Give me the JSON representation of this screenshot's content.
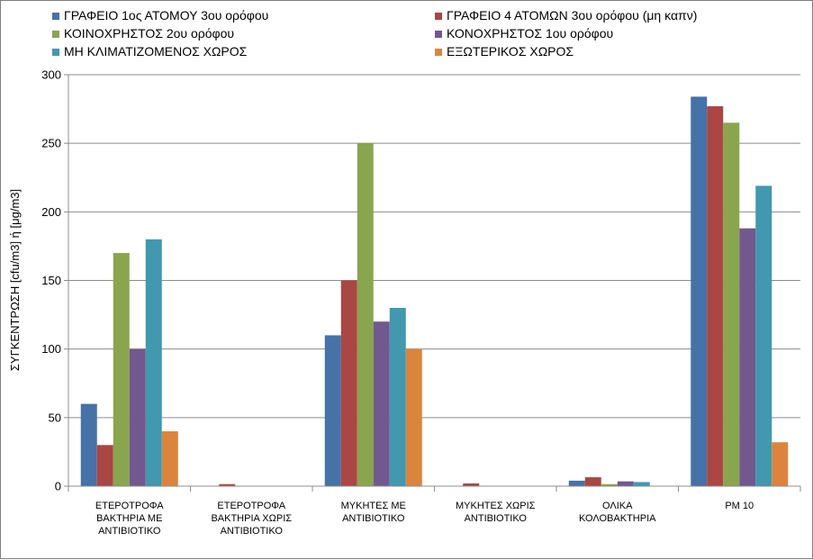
{
  "chart_data": {
    "type": "bar",
    "title": "",
    "xlabel": "",
    "ylabel": "ΣΥΓΚΕΝΤΡΩΣΗ [cfu/m3] ή [μg/m3]",
    "ylim": [
      0,
      300
    ],
    "yticks": [
      0,
      50,
      100,
      150,
      200,
      250,
      300
    ],
    "grid": true,
    "legend_position": "top",
    "categories": [
      [
        "ΕΤΕΡΟΤΡΟΦΑ",
        "ΒΑΚΤΗΡΙΑ ΜΕ",
        "ΑΝΤΙΒΙΟΤΙΚΟ"
      ],
      [
        "ΕΤΕΡΟΤΡΟΦΑ",
        "ΒΑΚΤΗΡΙΑ ΧΩΡΙΣ",
        "ΑΝΤΙΒΙΟΤΙΚΟ"
      ],
      [
        "ΜΥΚΗΤΕΣ ΜΕ",
        "ΑΝΤΙΒΙΟΤΙΚΟ"
      ],
      [
        "ΜΥΚΗΤΕΣ ΧΩΡΙΣ",
        "ΑΝΤΙΒΙΟΤΙΚΟ"
      ],
      [
        "ΟΛΙΚΑ",
        "ΚΟΛΟΒΑΚΤΗΡΙΑ"
      ],
      [
        "PM 10"
      ]
    ],
    "series": [
      {
        "name": "ΓΡΑΦΕΙΟ 1ος ΑΤΟΜΟΥ 3ου ορόφου",
        "color": "#4572a7",
        "values": [
          60,
          0,
          110,
          0,
          4,
          284
        ]
      },
      {
        "name": "ΓΡΑΦΕΙΟ 4 ΑΤΟΜΩΝ  3ου ορόφου (μη καπν)",
        "color": "#aa4643",
        "values": [
          30,
          1.5,
          150,
          2,
          6.5,
          277
        ]
      },
      {
        "name": "ΚΟΙΝΟΧΡΗΣΤΟΣ 2ου ορόφου",
        "color": "#89a54e",
        "values": [
          170,
          0,
          250,
          0,
          1.5,
          265
        ]
      },
      {
        "name": "ΚΟΝΟΧΡΗΣΤΟΣ 1ου ορόφου",
        "color": "#71588f",
        "values": [
          100,
          0,
          120,
          0,
          3.5,
          188
        ]
      },
      {
        "name": "ΜΗ ΚΛΙΜΑΤΙΖΟΜΕΝΟΣ ΧΩΡΟΣ",
        "color": "#4198af",
        "values": [
          180,
          0,
          130,
          0,
          3,
          219
        ]
      },
      {
        "name": "ΕΞΩΤΕΡΙΚΟΣ ΧΩΡΟΣ",
        "color": "#db843d",
        "values": [
          40,
          0,
          100,
          0,
          0,
          32
        ]
      }
    ]
  }
}
